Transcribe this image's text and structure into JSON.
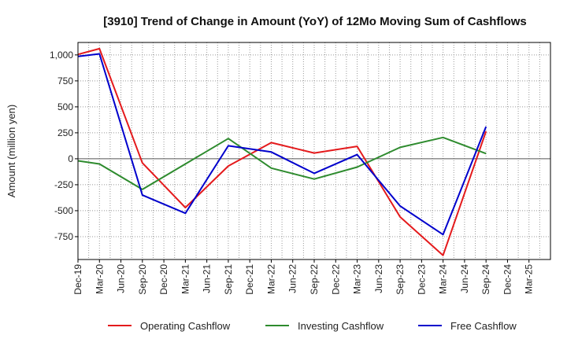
{
  "chart_data": {
    "type": "line",
    "title": "[3910]  Trend of Change in Amount (YoY) of 12Mo Moving Sum of Cashflows",
    "xlabel": "",
    "ylabel": "Amount (million yen)",
    "categories": [
      "Dec-19",
      "Mar-20",
      "Jun-20",
      "Sep-20",
      "Dec-20",
      "Mar-21",
      "Jun-21",
      "Sep-21",
      "Dec-21",
      "Mar-22",
      "Jun-22",
      "Sep-22",
      "Dec-22",
      "Mar-23",
      "Jun-23",
      "Sep-23",
      "Dec-23",
      "Mar-24",
      "Jun-24",
      "Sep-24",
      "Dec-24",
      "Mar-25"
    ],
    "yticks": [
      1000,
      750,
      500,
      250,
      0,
      -250,
      -500,
      -750
    ],
    "ytick_labels": [
      "1,000",
      "750",
      "500",
      "250",
      "0",
      "-250",
      "-500",
      "-750"
    ],
    "ylim": [
      -970,
      1120
    ],
    "grid": true,
    "legend_position": "bottom",
    "series": [
      {
        "name": "Operating Cashflow",
        "color": "#e41a1c",
        "values": [
          1005,
          1060,
          null,
          -40,
          null,
          -470,
          null,
          -70,
          null,
          155,
          null,
          55,
          null,
          120,
          null,
          -560,
          null,
          -930,
          null,
          265,
          null,
          null
        ]
      },
      {
        "name": "Investing Cashflow",
        "color": "#2e8b2e",
        "values": [
          -20,
          -50,
          null,
          -295,
          null,
          -50,
          null,
          195,
          null,
          -90,
          null,
          -195,
          null,
          -80,
          null,
          110,
          null,
          205,
          null,
          50,
          null,
          null
        ]
      },
      {
        "name": "Free Cashflow",
        "color": "#0000cc",
        "values": [
          985,
          1010,
          null,
          -350,
          null,
          -525,
          null,
          125,
          null,
          65,
          null,
          -140,
          null,
          40,
          null,
          -455,
          null,
          -730,
          null,
          310,
          null,
          null
        ]
      }
    ]
  }
}
